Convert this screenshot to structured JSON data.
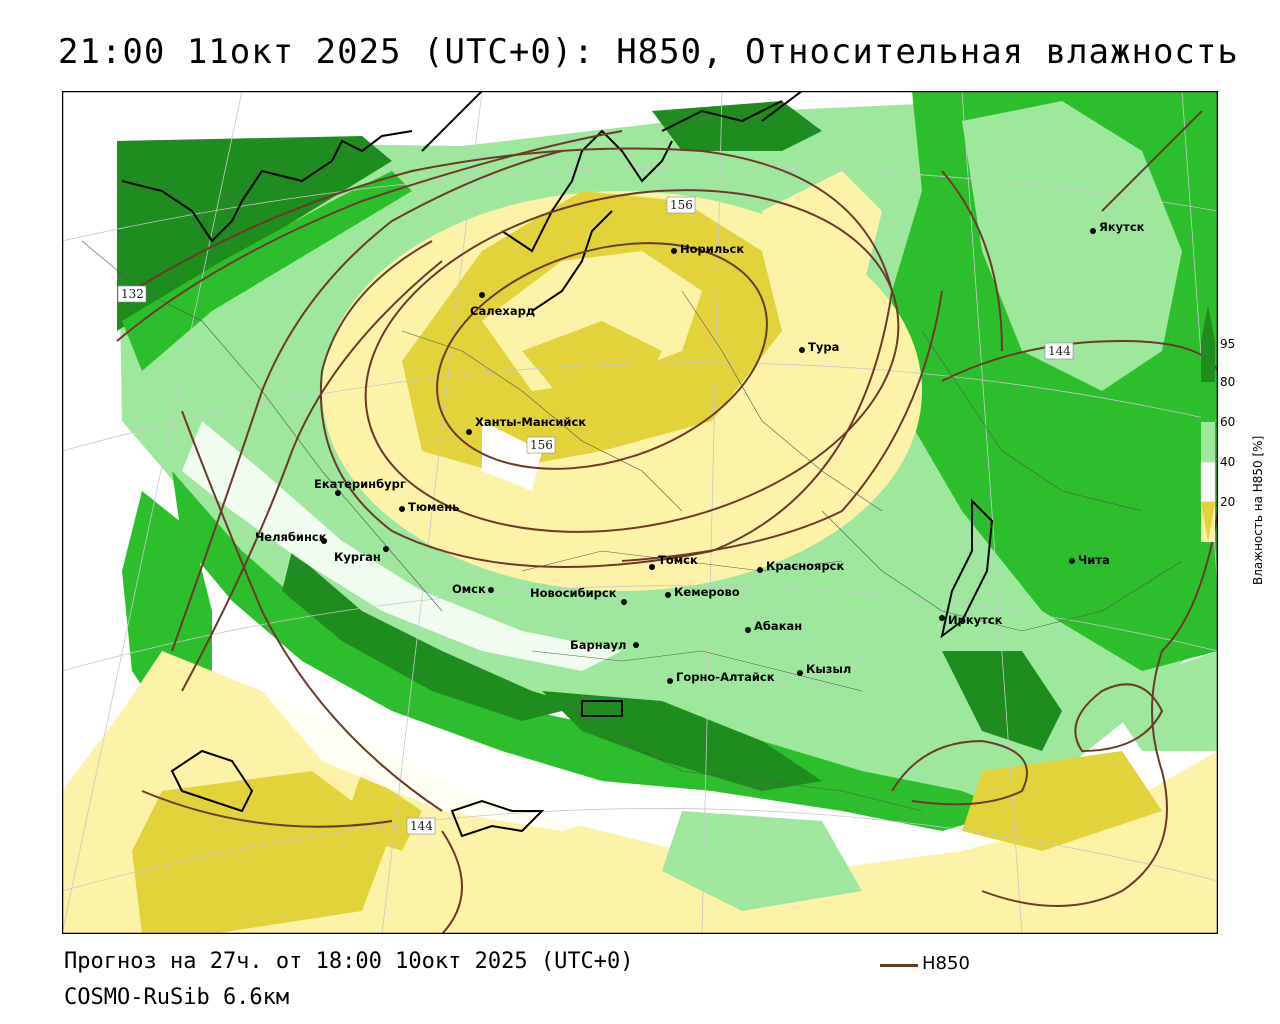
{
  "title": "21:00 11окт 2025 (UTC+0): H850, Относительная влажность",
  "footer": {
    "forecast": "Прогноз на 27ч. от 18:00 10окт 2025 (UTC+0)",
    "model": "COSMO-RuSib 6.6км",
    "legend_line_label": "H850"
  },
  "colorbar": {
    "label": "Влажность на H850 [%]",
    "ticks": [
      "95",
      "80",
      "60",
      "40",
      "20"
    ],
    "colors": {
      "c95": "#1e8c1e",
      "c80": "#2dbe2d",
      "c60": "#9de89d",
      "c40": "#ffffff",
      "c20": "#fdf3a8",
      "c0": "#e3d23a"
    }
  },
  "cities": [
    {
      "name": "Салехард"
    },
    {
      "name": "Норильск"
    },
    {
      "name": "Якутск"
    },
    {
      "name": "Тура"
    },
    {
      "name": "Ханты-Мансийск"
    },
    {
      "name": "Екатеринбург"
    },
    {
      "name": "Тюмень"
    },
    {
      "name": "Челябинск"
    },
    {
      "name": "Курган"
    },
    {
      "name": "Омск"
    },
    {
      "name": "Новосибирск"
    },
    {
      "name": "Томск"
    },
    {
      "name": "Кемерово"
    },
    {
      "name": "Красноярск"
    },
    {
      "name": "Абакан"
    },
    {
      "name": "Барнаул"
    },
    {
      "name": "Горно-Алтайск"
    },
    {
      "name": "Кызыл"
    },
    {
      "name": "Иркутск"
    },
    {
      "name": "Чита"
    }
  ],
  "contour_labels": [
    "156",
    "156",
    "132",
    "144",
    "144"
  ]
}
